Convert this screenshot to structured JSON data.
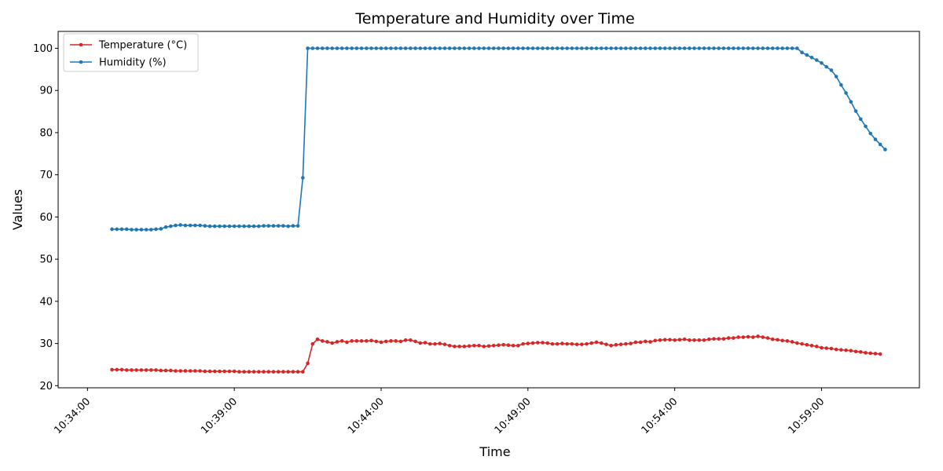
{
  "chart_data": {
    "type": "line",
    "title": "Temperature and Humidity over Time",
    "xlabel": "Time",
    "ylabel": "Values",
    "xlim": [
      "10:33:00",
      "11:02:20"
    ],
    "ylim": [
      19.5,
      104
    ],
    "x_ticks": [
      "10:34:00",
      "10:39:00",
      "10:44:00",
      "10:49:00",
      "10:54:00",
      "10:59:00"
    ],
    "y_ticks": [
      20,
      30,
      40,
      50,
      60,
      70,
      80,
      90,
      100
    ],
    "grid": false,
    "legend_position": "top-left",
    "x_start": "10:34:50",
    "x_step_seconds": 10,
    "series": [
      {
        "name": "Temperature (°C)",
        "color": "#d62728",
        "values": [
          23.8,
          23.8,
          23.8,
          23.7,
          23.7,
          23.7,
          23.7,
          23.7,
          23.7,
          23.7,
          23.6,
          23.6,
          23.6,
          23.5,
          23.5,
          23.5,
          23.5,
          23.5,
          23.5,
          23.4,
          23.4,
          23.4,
          23.4,
          23.4,
          23.4,
          23.4,
          23.3,
          23.3,
          23.3,
          23.3,
          23.3,
          23.3,
          23.3,
          23.3,
          23.3,
          23.3,
          23.3,
          23.3,
          23.3,
          23.3,
          25.3,
          29.9,
          31.0,
          30.6,
          30.4,
          30.1,
          30.4,
          30.6,
          30.3,
          30.6,
          30.6,
          30.6,
          30.6,
          30.7,
          30.5,
          30.3,
          30.5,
          30.6,
          30.6,
          30.5,
          30.8,
          30.8,
          30.5,
          30.1,
          30.2,
          29.9,
          29.9,
          30.0,
          29.8,
          29.5,
          29.3,
          29.3,
          29.3,
          29.4,
          29.5,
          29.5,
          29.3,
          29.4,
          29.5,
          29.6,
          29.7,
          29.6,
          29.5,
          29.5,
          29.9,
          30.0,
          30.1,
          30.2,
          30.2,
          30.1,
          29.9,
          29.9,
          30.0,
          29.9,
          29.9,
          29.8,
          29.8,
          29.9,
          30.1,
          30.3,
          30.1,
          29.8,
          29.5,
          29.7,
          29.8,
          29.9,
          30.0,
          30.3,
          30.3,
          30.5,
          30.4,
          30.7,
          30.8,
          30.9,
          30.9,
          30.8,
          30.9,
          31.0,
          30.8,
          30.8,
          30.8,
          30.8,
          31.0,
          31.1,
          31.1,
          31.1,
          31.3,
          31.3,
          31.5,
          31.5,
          31.6,
          31.5,
          31.7,
          31.5,
          31.3,
          31.0,
          30.9,
          30.7,
          30.6,
          30.4,
          30.1,
          29.9,
          29.7,
          29.5,
          29.3,
          29.0,
          28.9,
          28.8,
          28.6,
          28.5,
          28.4,
          28.3,
          28.1,
          28.0,
          27.8,
          27.7,
          27.6,
          27.5
        ]
      },
      {
        "name": "Humidity (%)",
        "color": "#1f77b4",
        "values": [
          57.1,
          57.1,
          57.1,
          57.1,
          57.0,
          57.0,
          57.0,
          57.0,
          57.0,
          57.1,
          57.2,
          57.6,
          57.8,
          58.0,
          58.1,
          58.0,
          58.0,
          58.0,
          58.0,
          57.9,
          57.8,
          57.8,
          57.8,
          57.8,
          57.8,
          57.8,
          57.8,
          57.8,
          57.8,
          57.8,
          57.8,
          57.9,
          57.9,
          57.9,
          57.9,
          57.9,
          57.8,
          57.9,
          57.9,
          69.3,
          100,
          100,
          100,
          100,
          100,
          100,
          100,
          100,
          100,
          100,
          100,
          100,
          100,
          100,
          100,
          100,
          100,
          100,
          100,
          100,
          100,
          100,
          100,
          100,
          100,
          100,
          100,
          100,
          100,
          100,
          100,
          100,
          100,
          100,
          100,
          100,
          100,
          100,
          100,
          100,
          100,
          100,
          100,
          100,
          100,
          100,
          100,
          100,
          100,
          100,
          100,
          100,
          100,
          100,
          100,
          100,
          100,
          100,
          100,
          100,
          100,
          100,
          100,
          100,
          100,
          100,
          100,
          100,
          100,
          100,
          100,
          100,
          100,
          100,
          100,
          100,
          100,
          100,
          100,
          100,
          100,
          100,
          100,
          100,
          100,
          100,
          100,
          100,
          100,
          100,
          100,
          100,
          100,
          100,
          100,
          100,
          100,
          100,
          100,
          100,
          100,
          99.0,
          98.4,
          97.8,
          97.2,
          96.5,
          95.6,
          94.8,
          93.3,
          91.3,
          89.4,
          87.3,
          85.1,
          83.2,
          81.5,
          79.8,
          78.4,
          77.2,
          76.0
        ]
      }
    ]
  }
}
